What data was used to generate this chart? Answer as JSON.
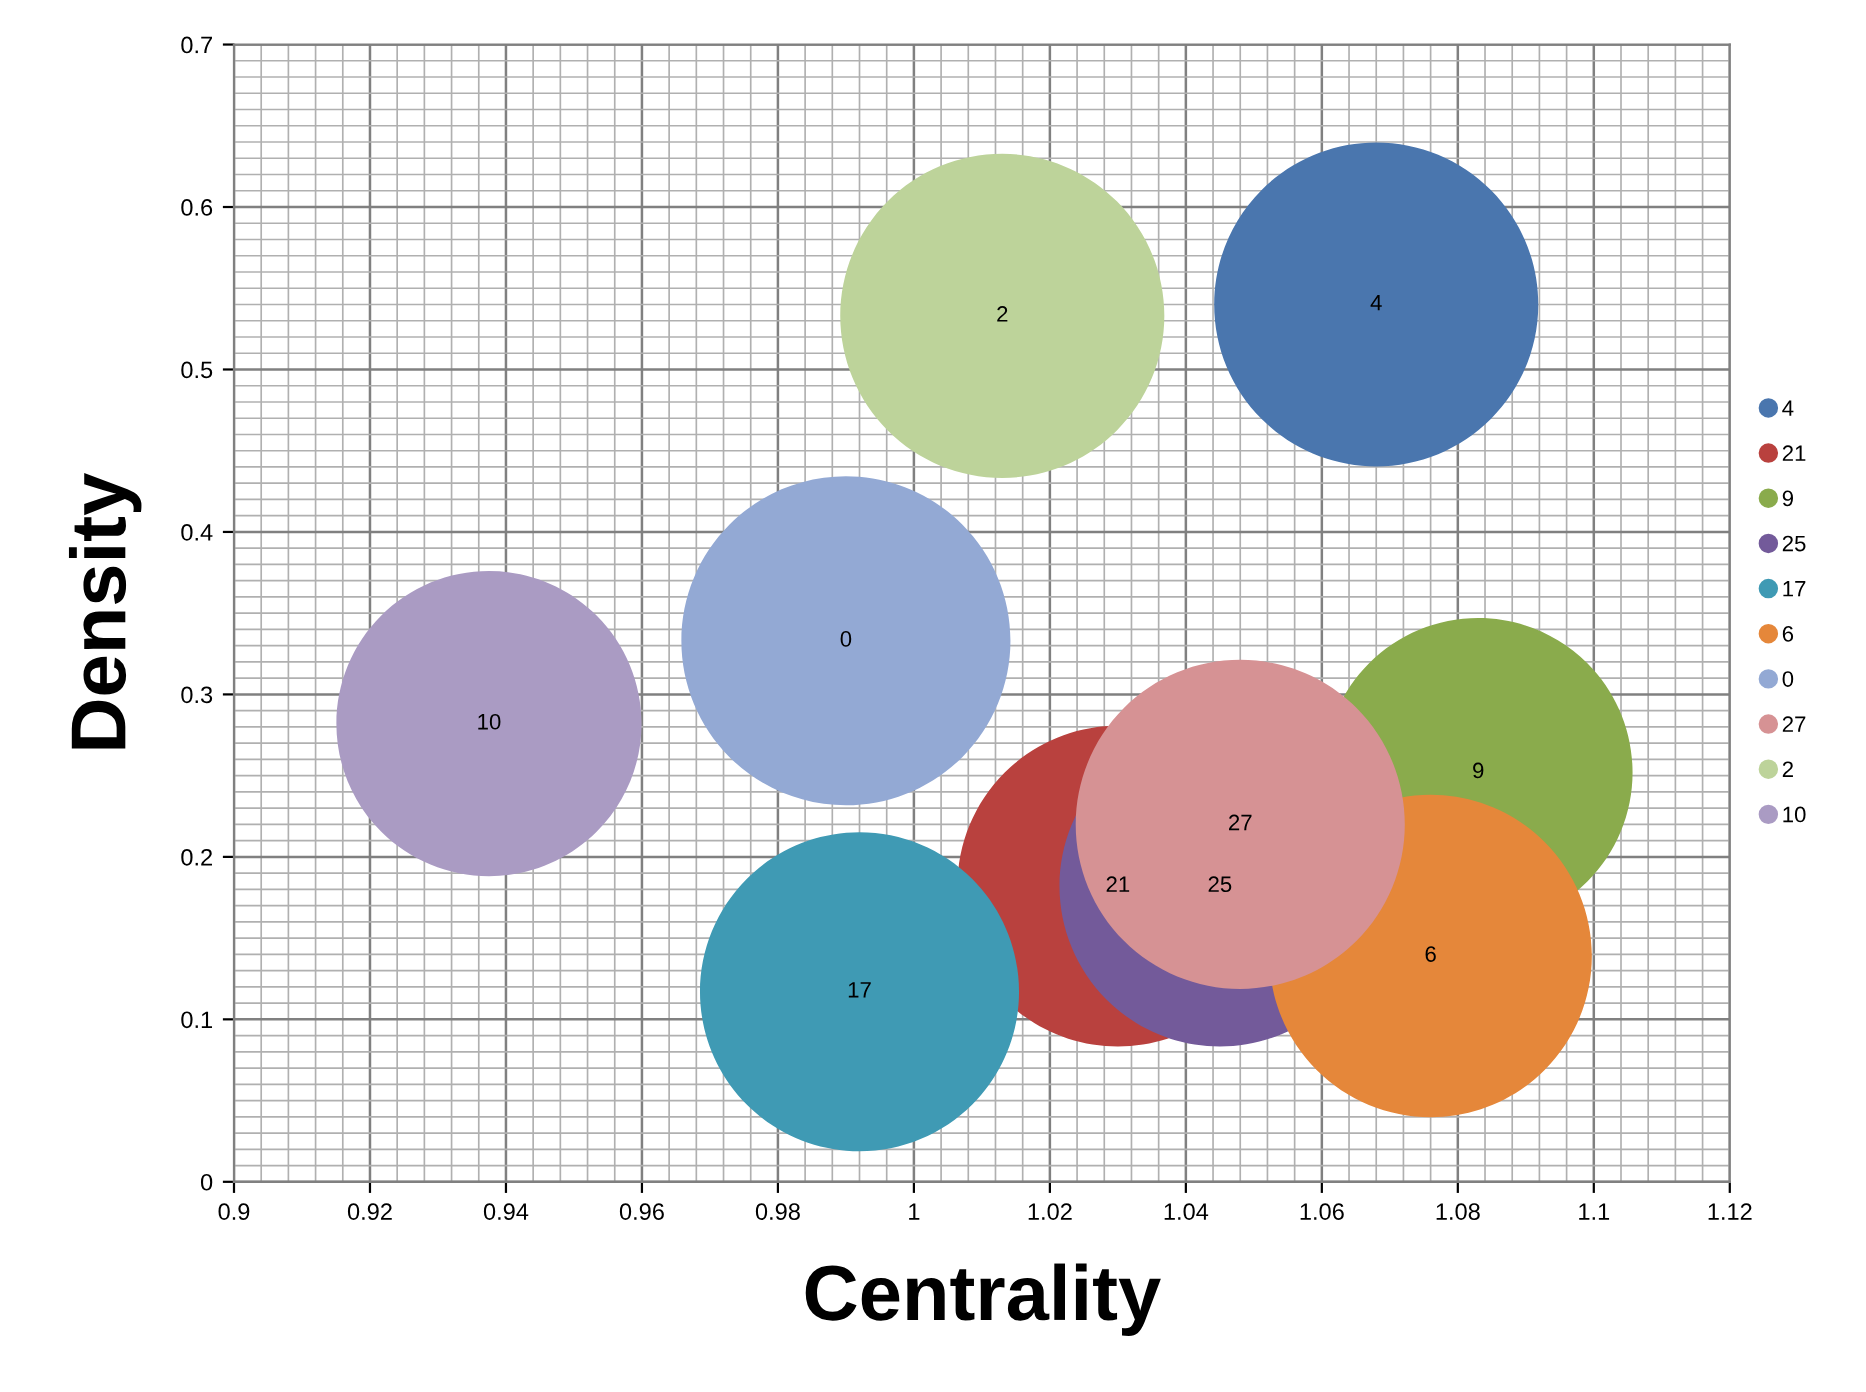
{
  "chart_data": {
    "type": "bubble",
    "xlabel": "Centrality",
    "ylabel": "Density",
    "xlim": [
      0.9,
      1.12
    ],
    "xticks": [
      0.9,
      0.92,
      0.94,
      0.96,
      0.98,
      1,
      1.02,
      1.04,
      1.06,
      1.08,
      1.1,
      1.12
    ],
    "ylim": [
      0,
      0.7
    ],
    "yticks": [
      0,
      0.1,
      0.2,
      0.3,
      0.4,
      0.5,
      0.6,
      0.7
    ],
    "grid": true,
    "legend": "right",
    "marker": "circle",
    "series": [
      {
        "name": "4",
        "color": "#4a76ae",
        "x": [
          1.068
        ],
        "values": [
          0.54
        ],
        "sizes": [
          0.97
        ]
      },
      {
        "name": "21",
        "color": "#b9413e",
        "x": [
          1.03
        ],
        "values": [
          0.182
        ],
        "sizes": [
          0.95
        ]
      },
      {
        "name": "9",
        "color": "#8aab4c",
        "x": [
          1.083
        ],
        "values": [
          0.252
        ],
        "sizes": [
          0.88
        ]
      },
      {
        "name": "25",
        "color": "#735a9a",
        "x": [
          1.045
        ],
        "values": [
          0.182
        ],
        "sizes": [
          0.95
        ]
      },
      {
        "name": "17",
        "color": "#3f9ab4",
        "x": [
          0.992
        ],
        "values": [
          0.117
        ],
        "sizes": [
          0.94
        ]
      },
      {
        "name": "6",
        "color": "#e5873a",
        "x": [
          1.076
        ],
        "values": [
          0.139
        ],
        "sizes": [
          0.96
        ]
      },
      {
        "name": "0",
        "color": "#93a9d4",
        "x": [
          0.99
        ],
        "values": [
          0.333
        ],
        "sizes": [
          1
        ]
      },
      {
        "name": "27",
        "color": "#d69294",
        "x": [
          1.048
        ],
        "values": [
          0.22
        ],
        "sizes": [
          1
        ]
      },
      {
        "name": "2",
        "color": "#bdd39a",
        "x": [
          1.013
        ],
        "values": [
          0.533
        ],
        "sizes": [
          0.97
        ]
      },
      {
        "name": "10",
        "color": "#aa9bc3",
        "x": [
          0.9375
        ],
        "values": [
          0.282
        ],
        "sizes": [
          0.86
        ]
      }
    ],
    "annotations": [
      {
        "text": "4",
        "x": 1.068,
        "y": 0.54
      },
      {
        "text": "21",
        "x": 1.03,
        "y": 0.182
      },
      {
        "text": "9",
        "x": 1.083,
        "y": 0.252
      },
      {
        "text": "25",
        "x": 1.045,
        "y": 0.182
      },
      {
        "text": "17",
        "x": 0.992,
        "y": 0.117
      },
      {
        "text": "6",
        "x": 1.076,
        "y": 0.139
      },
      {
        "text": "0",
        "x": 0.99,
        "y": 0.333
      },
      {
        "text": "27",
        "x": 1.048,
        "y": 0.22
      },
      {
        "text": "2",
        "x": 1.013,
        "y": 0.533
      },
      {
        "text": "10",
        "x": 0.9375,
        "y": 0.282
      }
    ]
  }
}
